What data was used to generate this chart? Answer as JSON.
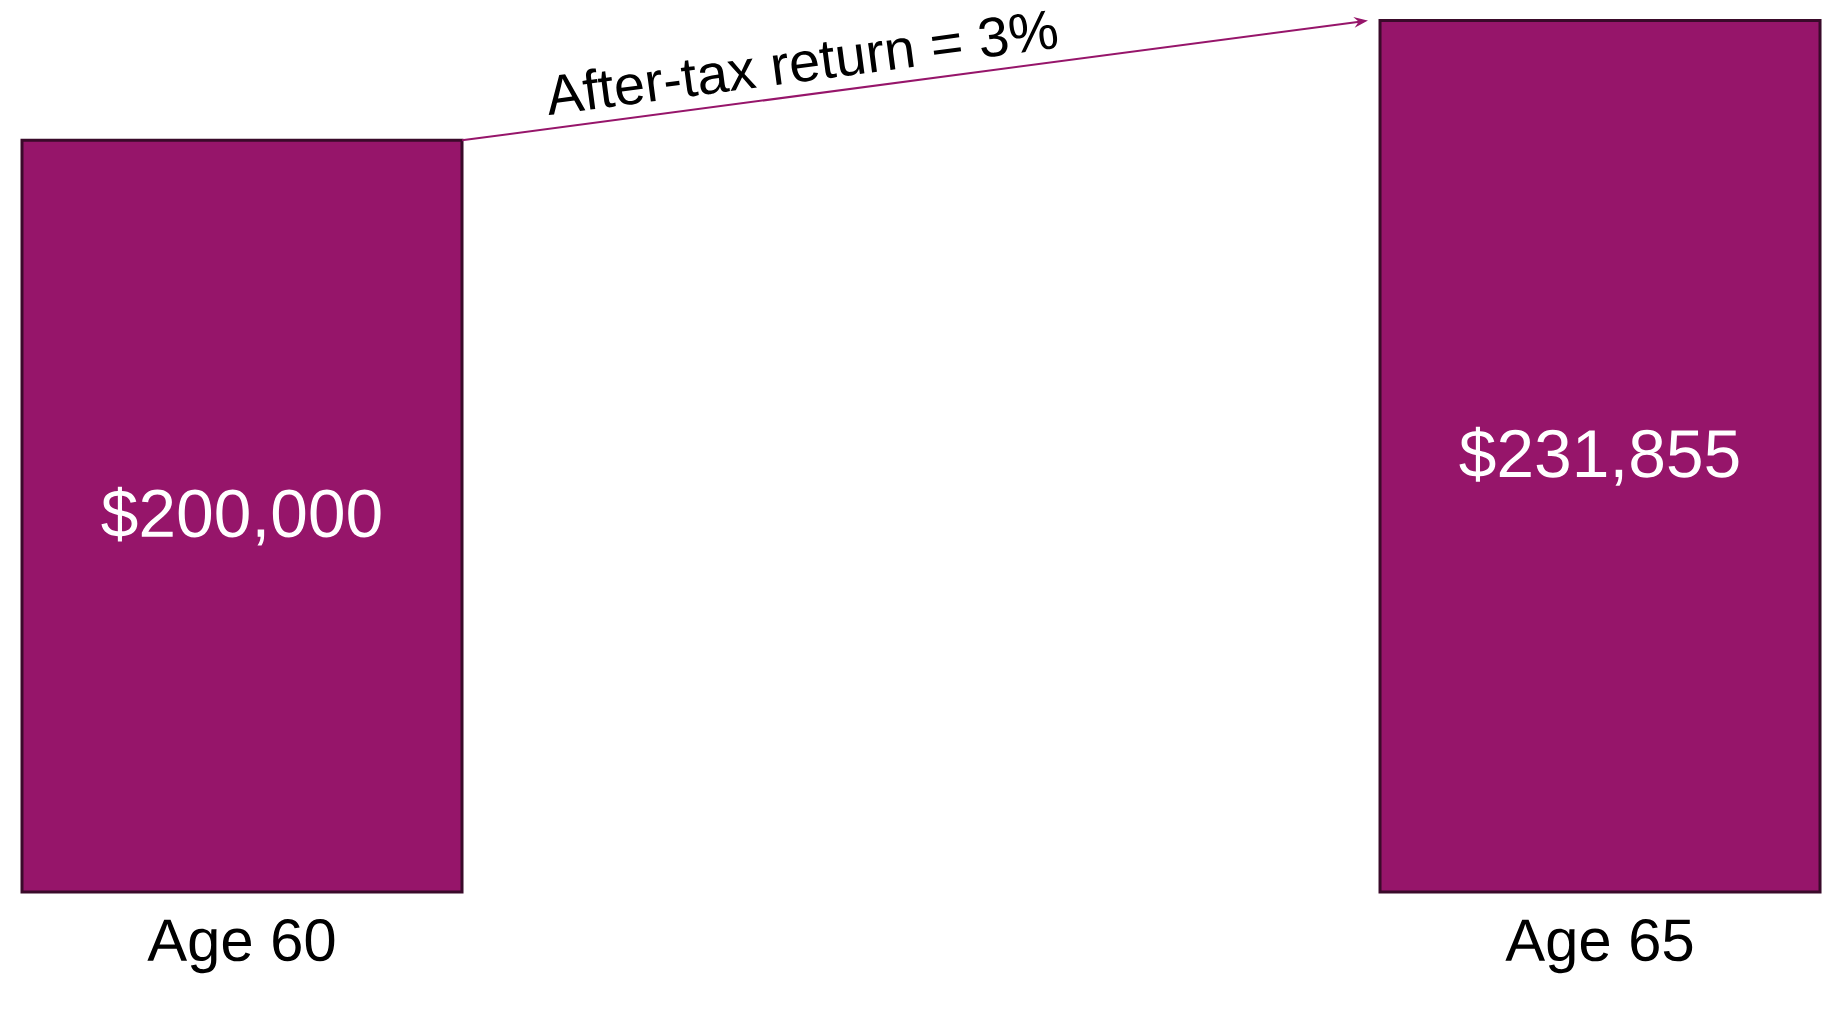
{
  "chart_data": {
    "type": "bar",
    "categories": [
      "Age 60",
      "Age 65"
    ],
    "values": [
      200000,
      231855
    ],
    "value_labels": [
      "$200,000",
      "$231,855"
    ],
    "color": "#96156a",
    "ylim": [
      0,
      232000
    ],
    "annotations": [
      "After-tax return = 3%"
    ]
  }
}
